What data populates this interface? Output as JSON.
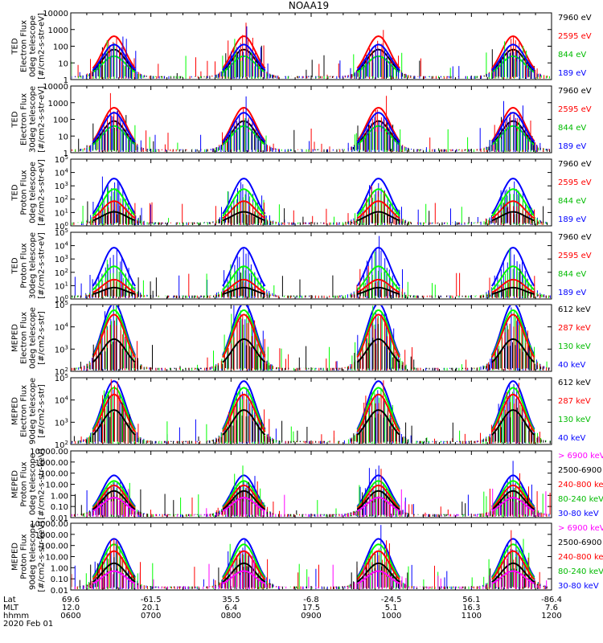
{
  "title": "NOAA19",
  "colors": {
    "black": "#000000",
    "red": "#ff0000",
    "green": "#00ff00",
    "blue": "#0000ff",
    "magenta": "#ff00ff",
    "legend_green_dark": "#00bb00"
  },
  "chart_data": [
    {
      "type": "line",
      "ylabel": [
        "TED",
        "Electron Flux",
        "0deg telescope",
        "[#/cm2-s-str-eV]"
      ],
      "yscale": "log",
      "ylim": [
        1,
        10000
      ],
      "yticks": [
        "10000",
        "1000",
        "100",
        "10",
        "1"
      ],
      "legend": [
        {
          "label": "7960 eV",
          "color": "black"
        },
        {
          "label": "2595 eV",
          "color": "red"
        },
        {
          "label": "844 eV",
          "color": "green"
        },
        {
          "label": "189 eV",
          "color": "blue"
        }
      ],
      "passes": [
        0.6,
        0.76
      ],
      "series": [
        {
          "name": "7960 eV",
          "color": "black",
          "peak_log": 1.6
        },
        {
          "name": "2595 eV",
          "color": "red",
          "peak_log": 2.4
        },
        {
          "name": "844 eV",
          "color": "green",
          "peak_log": 1.2
        },
        {
          "name": "189 eV",
          "color": "blue",
          "peak_log": 1.9
        }
      ]
    },
    {
      "type": "line",
      "ylabel": [
        "TED",
        "Electron Flux",
        "30deg telescope",
        "[#/cm2-s-str-eV]"
      ],
      "yscale": "log",
      "ylim": [
        1,
        10000
      ],
      "yticks": [
        "10000",
        "1000",
        "100",
        "10",
        "1"
      ],
      "legend": [
        {
          "label": "7960 eV",
          "color": "black"
        },
        {
          "label": "2595 eV",
          "color": "red"
        },
        {
          "label": "844 eV",
          "color": "green"
        },
        {
          "label": "189 eV",
          "color": "blue"
        }
      ],
      "passes": [
        0.6,
        0.76
      ],
      "series": [
        {
          "name": "7960 eV",
          "color": "black",
          "peak_log": 1.7
        },
        {
          "name": "2595 eV",
          "color": "red",
          "peak_log": 2.5
        },
        {
          "name": "844 eV",
          "color": "green",
          "peak_log": 1.4
        },
        {
          "name": "189 eV",
          "color": "blue",
          "peak_log": 2.2
        }
      ]
    },
    {
      "type": "line",
      "ylabel": [
        "TED",
        "Proton Flux",
        "0deg telescope",
        "[#/cm2-s-str-eV]"
      ],
      "yscale": "log",
      "ylim": [
        1,
        100000
      ],
      "yticks": [
        "10^5",
        "10^4",
        "10^3",
        "10^2",
        "10^1",
        "10^0"
      ],
      "legend": [
        {
          "label": "7960 eV",
          "color": "black"
        },
        {
          "label": "2595 eV",
          "color": "red"
        },
        {
          "label": "844 eV",
          "color": "green"
        },
        {
          "label": "189 eV",
          "color": "blue"
        }
      ],
      "passes": [
        0.6,
        0.76
      ],
      "series": [
        {
          "name": "189 eV",
          "color": "blue",
          "peak_log": 3.3
        },
        {
          "name": "844 eV",
          "color": "green",
          "peak_log": 2.5
        },
        {
          "name": "2595 eV",
          "color": "red",
          "peak_log": 1.6
        },
        {
          "name": "7960 eV",
          "color": "black",
          "peak_log": 0.8
        }
      ]
    },
    {
      "type": "line",
      "ylabel": [
        "TED",
        "Proton Flux",
        "30deg telescope",
        "[#/cm2-s-str-eV]"
      ],
      "yscale": "log",
      "ylim": [
        1,
        100000
      ],
      "yticks": [
        "10^5",
        "10^4",
        "10^3",
        "10^2",
        "10^1",
        "10^0"
      ],
      "legend": [
        {
          "label": "7960 eV",
          "color": "black"
        },
        {
          "label": "2595 eV",
          "color": "red"
        },
        {
          "label": "844 eV",
          "color": "green"
        },
        {
          "label": "189 eV",
          "color": "blue"
        }
      ],
      "passes": [
        0.6,
        0.76
      ],
      "series": [
        {
          "name": "189 eV",
          "color": "blue",
          "peak_log": 3.6
        },
        {
          "name": "844 eV",
          "color": "green",
          "peak_log": 2.2
        },
        {
          "name": "2595 eV",
          "color": "red",
          "peak_log": 1.2
        },
        {
          "name": "7960 eV",
          "color": "black",
          "peak_log": 0.6
        }
      ]
    },
    {
      "type": "line",
      "ylabel": [
        "MEPED",
        "Electron Flux",
        "0deg telescope",
        "[#/cm2-s-str]"
      ],
      "yscale": "log",
      "ylim": [
        100,
        100000
      ],
      "yticks": [
        "10^5",
        "10^4",
        "10^3",
        "10^2"
      ],
      "legend": [
        {
          "label": "612 keV",
          "color": "black"
        },
        {
          "label": "287 keV",
          "color": "red"
        },
        {
          "label": "130 keV",
          "color": "green"
        },
        {
          "label": "40 keV",
          "color": "blue"
        }
      ],
      "passes": [
        0.9,
        0.96
      ],
      "series": [
        {
          "name": "40 keV",
          "color": "blue",
          "peak_log": 4.9
        },
        {
          "name": "130 keV",
          "color": "green",
          "peak_log": 4.6
        },
        {
          "name": "287 keV",
          "color": "red",
          "peak_log": 4.4
        },
        {
          "name": "612 keV",
          "color": "black",
          "peak_log": 3.3
        }
      ]
    },
    {
      "type": "line",
      "ylabel": [
        "MEPED",
        "Electron Flux",
        "90deg telescope",
        "[#/cm2-s-str]"
      ],
      "yscale": "log",
      "ylim": [
        100,
        100000
      ],
      "yticks": [
        "10^5",
        "10^4",
        "10^3",
        "10^2"
      ],
      "legend": [
        {
          "label": "612 keV",
          "color": "black"
        },
        {
          "label": "287 keV",
          "color": "red"
        },
        {
          "label": "130 keV",
          "color": "green"
        },
        {
          "label": "40 keV",
          "color": "blue"
        }
      ],
      "passes": [
        0.85,
        0.93
      ],
      "series": [
        {
          "name": "40 keV",
          "color": "blue",
          "peak_log": 4.7
        },
        {
          "name": "130 keV",
          "color": "green",
          "peak_log": 4.4
        },
        {
          "name": "287 keV",
          "color": "red",
          "peak_log": 4.1
        },
        {
          "name": "612 keV",
          "color": "black",
          "peak_log": 3.4
        }
      ]
    },
    {
      "type": "line",
      "ylabel": [
        "MEPED",
        "Proton Flux",
        "0deg telescope",
        "[#/cm2-s-str-keV]"
      ],
      "yscale": "log",
      "ylim": [
        0.01,
        10000
      ],
      "yticks": [
        "10000.00",
        "1000.00",
        "100.00",
        "10.00",
        "1.00",
        "0.10",
        "0.01"
      ],
      "legend": [
        {
          "label": "> 6900 keV",
          "color": "magenta"
        },
        {
          "label": "2500-6900",
          "color": "black"
        },
        {
          "label": "240-800 keV",
          "color": "red"
        },
        {
          "label": "80-240 keV",
          "color": "green"
        },
        {
          "label": "30-80 keV",
          "color": "blue"
        }
      ],
      "passes": [
        0.6,
        0.72
      ],
      "series": [
        {
          "name": "30-80 keV",
          "color": "blue",
          "peak_log": 1.5
        },
        {
          "name": "80-240 keV",
          "color": "green",
          "peak_log": 1.0
        },
        {
          "name": "240-800 keV",
          "color": "red",
          "peak_log": 0.6
        },
        {
          "name": "2500-6900",
          "color": "black",
          "peak_log": 0.1
        },
        {
          "name": "> 6900 keV",
          "color": "magenta",
          "peak_log": -0.5
        }
      ]
    },
    {
      "type": "line",
      "ylabel": [
        "MEPED",
        "Proton Flux",
        "90deg telescope",
        "[#/cm2-s-str-keV]"
      ],
      "yscale": "log",
      "ylim": [
        0.01,
        10000
      ],
      "yticks": [
        "10000.00",
        "1000.00",
        "100.00",
        "10.00",
        "1.00",
        "0.10",
        "0.01"
      ],
      "legend": [
        {
          "label": "> 6900 keV",
          "color": "magenta"
        },
        {
          "label": "2500-6900",
          "color": "black"
        },
        {
          "label": "240-800 keV",
          "color": "red"
        },
        {
          "label": "80-240 keV",
          "color": "green"
        },
        {
          "label": "30-80 keV",
          "color": "blue"
        }
      ],
      "passes": [
        0.6,
        0.72
      ],
      "series": [
        {
          "name": "30-80 keV",
          "color": "blue",
          "peak_log": 2.3
        },
        {
          "name": "80-240 keV",
          "color": "green",
          "peak_log": 1.8
        },
        {
          "name": "240-800 keV",
          "color": "red",
          "peak_log": 1.2
        },
        {
          "name": "2500-6900",
          "color": "black",
          "peak_log": 0.1
        },
        {
          "name": "> 6900 keV",
          "color": "magenta",
          "peak_log": -0.6
        }
      ]
    }
  ],
  "x_axis": {
    "rows": [
      {
        "label": "Lat",
        "values": [
          "69.6",
          "-61.5",
          "35.5",
          "-6.8",
          "-24.5",
          "56.1",
          "-86.4"
        ]
      },
      {
        "label": "MLT",
        "values": [
          "12.0",
          "20.1",
          "6.4",
          "17.5",
          "5.1",
          "16.3",
          "7.6"
        ]
      },
      {
        "label": "hhmm",
        "values": [
          "0600",
          "0700",
          "0800",
          "0900",
          "1000",
          "1100",
          "1200"
        ]
      }
    ],
    "date": "2020 Feb 01"
  }
}
